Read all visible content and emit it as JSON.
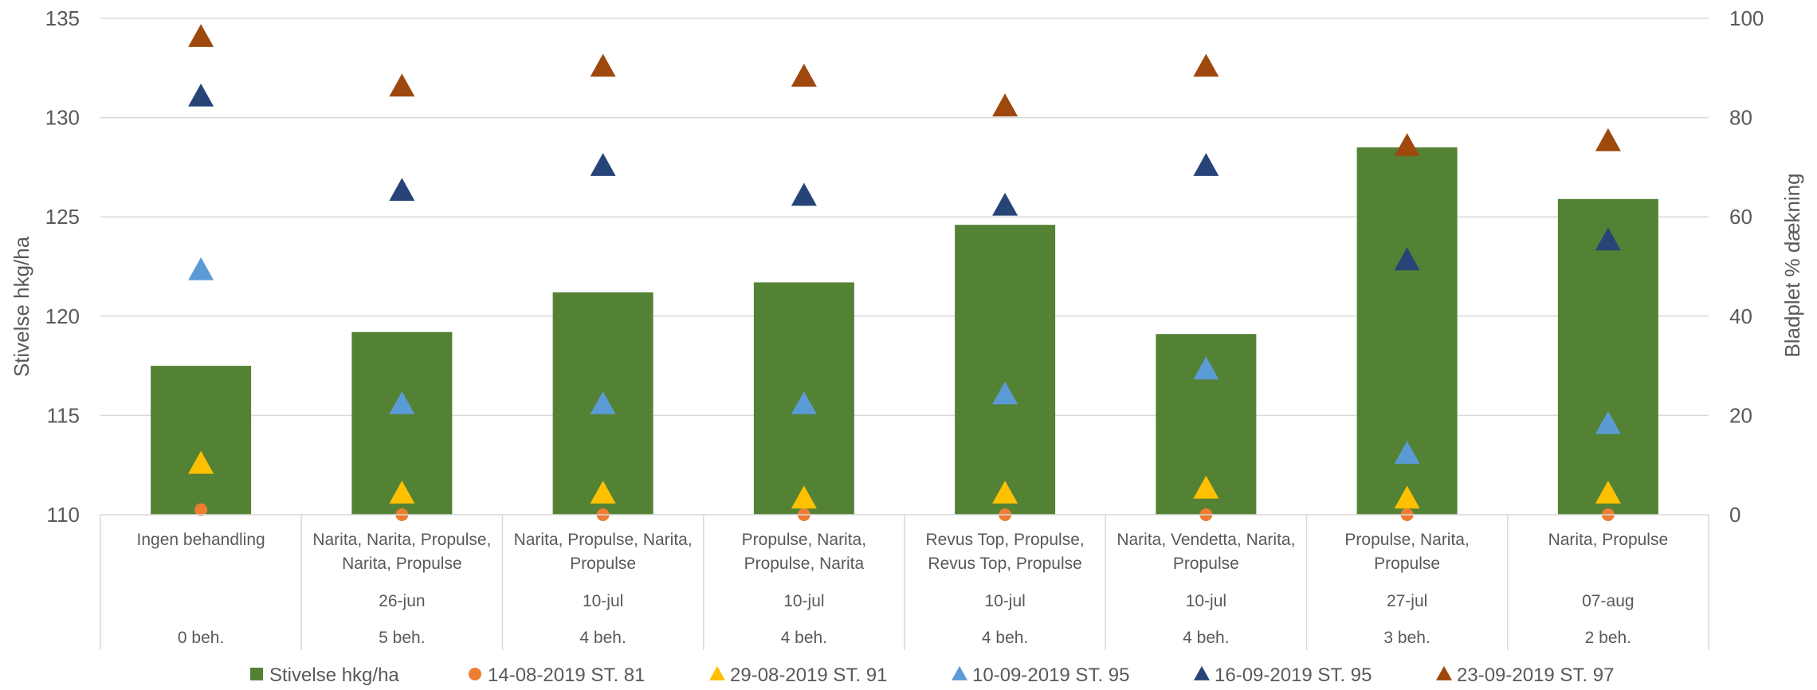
{
  "chart_data": {
    "type": "bar",
    "ylabel": "Stivelse hkg/ha",
    "y2label": "Bladplet % dækning",
    "ylim": [
      110,
      135
    ],
    "yticks": [
      110,
      115,
      120,
      125,
      130,
      135
    ],
    "y2lim": [
      0,
      100
    ],
    "y2ticks": [
      0,
      20,
      40,
      60,
      80,
      100
    ],
    "grid": true,
    "legend_position": "bottom",
    "categories": [
      {
        "lines": [
          "Ingen behandling"
        ],
        "date": "",
        "count": "0 beh."
      },
      {
        "lines": [
          "Narita, Narita, Propulse,",
          "Narita, Propulse"
        ],
        "date": "26-jun",
        "count": "5 beh."
      },
      {
        "lines": [
          "Narita, Propulse, Narita,",
          "Propulse"
        ],
        "date": "10-jul",
        "count": "4 beh."
      },
      {
        "lines": [
          "Propulse, Narita,",
          "Propulse, Narita"
        ],
        "date": "10-jul",
        "count": "4 beh."
      },
      {
        "lines": [
          "Revus Top, Propulse,",
          "Revus Top, Propulse"
        ],
        "date": "10-jul",
        "count": "4 beh."
      },
      {
        "lines": [
          "Narita, Vendetta, Narita,",
          "Propulse"
        ],
        "date": "10-jul",
        "count": "4 beh."
      },
      {
        "lines": [
          "Propulse, Narita,",
          "Propulse"
        ],
        "date": "27-jul",
        "count": "3 beh."
      },
      {
        "lines": [
          "Narita, Propulse"
        ],
        "date": "07-aug",
        "count": "2 beh."
      }
    ],
    "bar_series": {
      "name": "Stivelse hkg/ha",
      "color": "#548235",
      "axis": "left",
      "values": [
        117.5,
        119.2,
        121.2,
        121.7,
        124.6,
        119.1,
        128.5,
        125.9
      ]
    },
    "marker_series": [
      {
        "name": "14-08-2019 ST. 81",
        "marker": "circle",
        "color": "#ED7D31",
        "axis": "right",
        "values": [
          1,
          0,
          0,
          0,
          0,
          0,
          0,
          0
        ]
      },
      {
        "name": "29-08-2019 ST. 91",
        "marker": "triangle",
        "color": "#FFC000",
        "axis": "right",
        "values": [
          10,
          4,
          4,
          3,
          4,
          5,
          3,
          4
        ]
      },
      {
        "name": "10-09-2019 ST. 95",
        "marker": "triangle",
        "color": "#5B9BD5",
        "axis": "right",
        "values": [
          49,
          22,
          22,
          22,
          24,
          29,
          12,
          18
        ]
      },
      {
        "name": "16-09-2019 ST. 95",
        "marker": "triangle",
        "color": "#264478",
        "axis": "right",
        "values": [
          84,
          65,
          70,
          64,
          62,
          70,
          51,
          55
        ]
      },
      {
        "name": "23-09-2019 ST. 97",
        "marker": "triangle",
        "color": "#9E480E",
        "axis": "right",
        "values": [
          96,
          86,
          90,
          88,
          82,
          90,
          74,
          75
        ]
      }
    ]
  }
}
